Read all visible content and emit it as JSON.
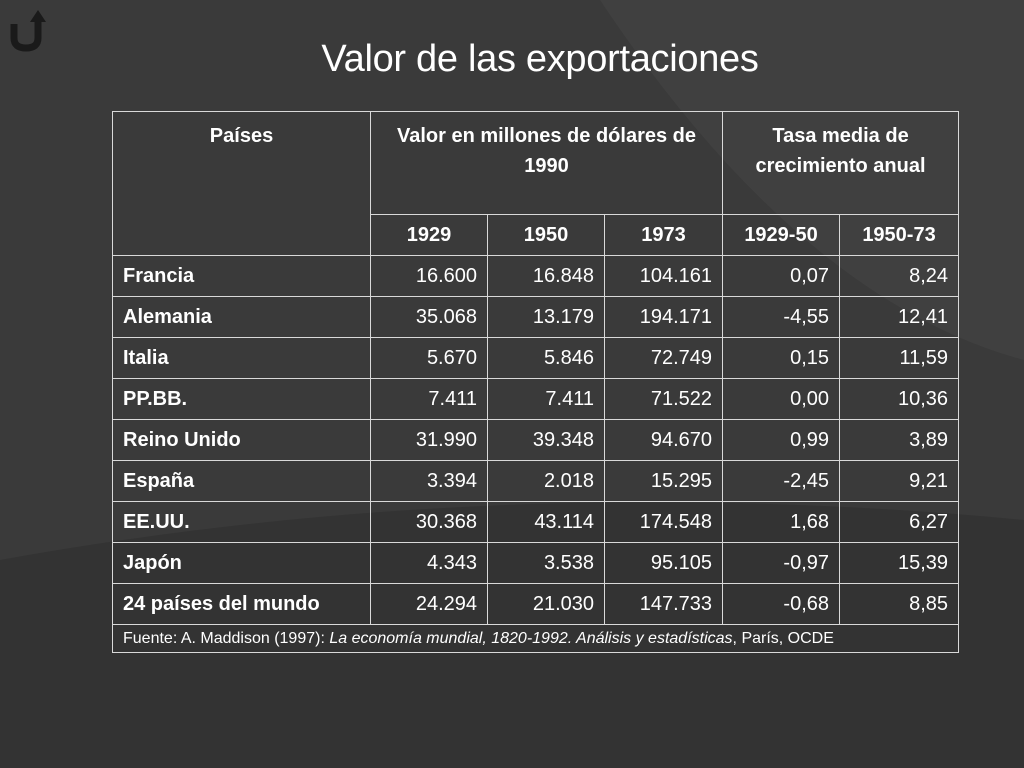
{
  "title": "Valor de las exportaciones",
  "header": {
    "col_country": "Países",
    "col_value": "Valor en millones de dólares de 1990",
    "col_rate": "Tasa media de crecimiento anual",
    "years": [
      "1929",
      "1950",
      "1973",
      "1929-50",
      "1950-73"
    ]
  },
  "rows": [
    {
      "country": "Francia",
      "v1929": "16.600",
      "v1950": "16.848",
      "v1973": "104.161",
      "r2950": "0,07",
      "r5073": "8,24"
    },
    {
      "country": "Alemania",
      "v1929": "35.068",
      "v1950": "13.179",
      "v1973": "194.171",
      "r2950": "-4,55",
      "r5073": "12,41"
    },
    {
      "country": "Italia",
      "v1929": "5.670",
      "v1950": "5.846",
      "v1973": "72.749",
      "r2950": "0,15",
      "r5073": "11,59"
    },
    {
      "country": "PP.BB.",
      "v1929": "7.411",
      "v1950": "7.411",
      "v1973": "71.522",
      "r2950": "0,00",
      "r5073": "10,36"
    },
    {
      "country": "Reino Unido",
      "v1929": "31.990",
      "v1950": "39.348",
      "v1973": "94.670",
      "r2950": "0,99",
      "r5073": "3,89"
    },
    {
      "country": "España",
      "v1929": "3.394",
      "v1950": "2.018",
      "v1973": "15.295",
      "r2950": "-2,45",
      "r5073": "9,21"
    },
    {
      "country": "EE.UU.",
      "v1929": "30.368",
      "v1950": "43.114",
      "v1973": "174.548",
      "r2950": "1,68",
      "r5073": "6,27"
    },
    {
      "country": "Japón",
      "v1929": "4.343",
      "v1950": "3.538",
      "v1973": "95.105",
      "r2950": "-0,97",
      "r5073": "15,39"
    },
    {
      "country": "24 países del mundo",
      "v1929": "24.294",
      "v1950": "21.030",
      "v1973": "147.733",
      "r2950": "-0,68",
      "r5073": "8,85"
    }
  ],
  "source": {
    "prefix": "Fuente: A. Maddison (1997): ",
    "work": "La economía mundial, 1820-1992. Análisis y estadísticas",
    "suffix": ", París, OCDE"
  },
  "icons": {
    "return": "return-arrow-icon"
  },
  "colors": {
    "background": "#3a3a3a",
    "text": "#ffffff",
    "border": "#d9d9d9"
  }
}
